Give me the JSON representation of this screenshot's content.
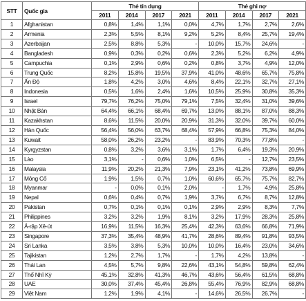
{
  "header": {
    "stt": "STT",
    "country": "Quốc gia",
    "groups": [
      {
        "label": "Thẻ tín dụng",
        "years": [
          "2011",
          "2014",
          "2017",
          "2021"
        ]
      },
      {
        "label": "Thẻ ghi nợ",
        "years": [
          "2011",
          "2014",
          "2017",
          "2021"
        ]
      }
    ]
  },
  "table": {
    "rows": [
      [
        "1",
        "Afghanistan",
        "0,8%",
        "1,4%",
        "1,1%",
        "0,0%",
        "4,7%",
        "1,7%",
        "2,7%",
        "2,6%"
      ],
      [
        "2",
        "Armenia",
        "2,3%",
        "5,5%",
        "8,1%",
        "9,2%",
        "5,2%",
        "8,4%",
        "25,7%",
        "19,4%"
      ],
      [
        "3",
        "Azerbaijan",
        "2,5%",
        "8,8%",
        "5,3%",
        "-",
        "10,0%",
        "15,7%",
        "24,6%",
        "-"
      ],
      [
        "4",
        "Bangladesh",
        "0,9%",
        "0,3%",
        "0,2%",
        "0,6%",
        "2,3%",
        "5,2%",
        "6,2%",
        "4,9%"
      ],
      [
        "5",
        "Campuchia",
        "0,1%",
        "2,9%",
        "0,6%",
        "0,2%",
        "0,8%",
        "3,7%",
        "4,9%",
        "12,0%"
      ],
      [
        "6",
        "Trung Quốc",
        "8,2%",
        "15,8%",
        "19,5%",
        "37,9%",
        "41,0%",
        "48,6%",
        "65,7%",
        "75,8%"
      ],
      [
        "7",
        "Ấn Độ",
        "1,8%",
        "4,2%",
        "3,0%",
        "4,6%",
        "8,4%",
        "22,1%",
        "32,7%",
        "27,1%"
      ],
      [
        "8",
        "Indonesia",
        "0,5%",
        "1,6%",
        "2,4%",
        "1,6%",
        "10,5%",
        "25,9%",
        "30,8%",
        "35,3%"
      ],
      [
        "9",
        "Israel",
        "79,7%",
        "76,2%",
        "75,0%",
        "79,1%",
        "7,5%",
        "32,4%",
        "31,0%",
        "39,6%"
      ],
      [
        "10",
        "Nhật Bản",
        "64,4%",
        "66,1%",
        "68,4%",
        "69,7%",
        "13,0%",
        "88,1%",
        "87,0%",
        "88,3%"
      ],
      [
        "11",
        "Kazakhstan",
        "8,6%",
        "11,5%",
        "20,0%",
        "20,9%",
        "31,3%",
        "32,0%",
        "39,7%",
        "60,0%"
      ],
      [
        "12",
        "Hàn Quốc",
        "56,4%",
        "56,0%",
        "63,7%",
        "68,4%",
        "57,9%",
        "66,8%",
        "75,3%",
        "84,0%"
      ],
      [
        "13",
        "Kuwait",
        "58,0%",
        "26,2%",
        "23,2%",
        "-",
        "83,9%",
        "70,3%",
        "77,8%",
        "-"
      ],
      [
        "14",
        "Kyrgyzstan",
        "0,8%",
        "3,2%",
        "3,6%",
        "3,1%",
        "1,7%",
        "6,4%",
        "19,3%",
        "20,9%"
      ],
      [
        "15",
        "Lào",
        "3,1%",
        "-",
        "0,6%",
        "1,0%",
        "6,5%",
        "-",
        "12,7%",
        "23,5%"
      ],
      [
        "16",
        "Malaysia",
        "11,9%",
        "20,2%",
        "21,3%",
        "7,9%",
        "23,1%",
        "41,2%",
        "73,8%",
        "69,9%"
      ],
      [
        "17",
        "Mông Cổ",
        "1,9%",
        "1,5%",
        "0,7%",
        "1,0%",
        "60,6%",
        "65,7%",
        "75,7%",
        "82,7%"
      ],
      [
        "18",
        "Myanmar",
        "-",
        "0,0%",
        "0,1%",
        "2,0%",
        "-",
        "1,7%",
        "4,9%",
        "25,8%"
      ],
      [
        "19",
        "Nepal",
        "0,6%",
        "0,4%",
        "0,7%",
        "1,9%",
        "3,7%",
        "6,7%",
        "8,7%",
        "12,8%"
      ],
      [
        "20",
        "Pakistan",
        "0,7%",
        "0,1%",
        "0,1%",
        "0,1%",
        "2,9%",
        "2,9%",
        "8,3%",
        "7,7%"
      ],
      [
        "21",
        "Philippines",
        "3,2%",
        "3,2%",
        "1,9%",
        "8,1%",
        "3,2%",
        "17,9%",
        "28,3%",
        "25,8%"
      ],
      [
        "22",
        "Ả-rập Xê-út",
        "16,9%",
        "11,5%",
        "16,3%",
        "25,4%",
        "42,3%",
        "63,6%",
        "66,8%",
        "71,9%"
      ],
      [
        "23",
        "Singapore",
        "37,3%",
        "35,4%",
        "48,9%",
        "41,7%",
        "28,6%",
        "89,4%",
        "91,8%",
        "93,5%"
      ],
      [
        "24",
        "Sri Lanka",
        "3,5%",
        "3,8%",
        "5,3%",
        "10,0%",
        "10,0%",
        "16,4%",
        "23,0%",
        "34,6%"
      ],
      [
        "25",
        "Tajikistan",
        "1,2%",
        "2,7%",
        "1,7%",
        "-",
        "1,7%",
        "4,2%",
        "13,8%",
        "-"
      ],
      [
        "26",
        "Thái Lan",
        "4,5%",
        "5,7%",
        "9,8%",
        "22,6%",
        "43,1%",
        "54,8%",
        "59,8%",
        "62,4%"
      ],
      [
        "27",
        "Thổ Nhĩ Kỳ",
        "45,1%",
        "32,8%",
        "41,3%",
        "46,7%",
        "43,6%",
        "56,4%",
        "61,5%",
        "68,8%"
      ],
      [
        "28",
        "UAE",
        "30,0%",
        "37,4%",
        "45,4%",
        "26,8%",
        "55,4%",
        "76,9%",
        "82,9%",
        "68,8%"
      ],
      [
        "29",
        "Việt Nam",
        "1,2%",
        "1,9%",
        "4,1%",
        "-",
        "14,6%",
        "26,5%",
        "26,7%",
        "-"
      ]
    ]
  }
}
